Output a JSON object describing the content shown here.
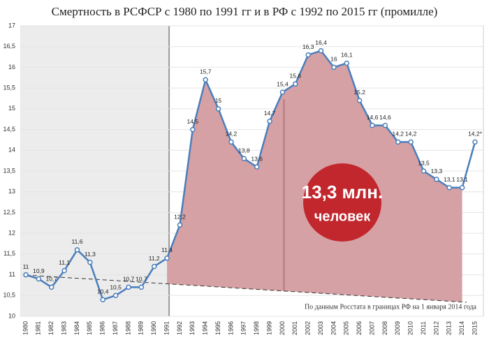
{
  "chart_data": {
    "type": "line",
    "title": "Смертность в РСФСР с 1980 по 1991 гг и в РФ с 1992 по 2015 гг (промилле)",
    "categories": [
      "1980",
      "1981",
      "1982",
      "1983",
      "1984",
      "1985",
      "1986",
      "1987",
      "1988",
      "1989",
      "1990",
      "1991",
      "1992",
      "1993",
      "1994",
      "1995",
      "1996",
      "1997",
      "1998",
      "1999",
      "2000",
      "2001",
      "2002",
      "2003",
      "2004",
      "2005",
      "2006",
      "2007",
      "2008",
      "2009",
      "2010",
      "2011",
      "2012",
      "2013",
      "2014",
      "2015"
    ],
    "series": [
      {
        "name": "Смертность",
        "color": "#4a7ebb",
        "values": [
          11,
          10.9,
          10.7,
          11.1,
          11.6,
          11.3,
          10.4,
          10.5,
          10.7,
          10.7,
          11.2,
          11.4,
          12.2,
          14.5,
          15.7,
          15,
          14.2,
          13.8,
          13.6,
          14.7,
          15.4,
          15.6,
          16.3,
          16.4,
          16,
          16.1,
          15.2,
          14.6,
          14.6,
          14.2,
          14.2,
          13.5,
          13.3,
          13.1,
          13.1,
          14.2
        ],
        "value_labels": [
          "11",
          "10,9",
          "10,7",
          "11,1",
          "11,6",
          "11,3",
          "10,4",
          "10,5",
          "10,7",
          "10,7",
          "11,2",
          "11,4",
          "12,2",
          "14,5",
          "15,7",
          "15",
          "14,2",
          "13,8",
          "13,6",
          "14,7",
          "15,4",
          "15,6",
          "16,3",
          "16,4",
          "16",
          "16,1",
          "15,2",
          "14,6",
          "14,6",
          "14,2",
          "14,2",
          "13,5",
          "13,3",
          "13,1",
          "13,1",
          "14,2*"
        ]
      }
    ],
    "ylim": [
      10,
      17
    ],
    "yticks": [
      10,
      {
        "value": 10.5,
        "label": "10,5"
      },
      11,
      {
        "value": 11.5,
        "label": "11,5"
      },
      12,
      {
        "value": 12.5,
        "label": "12,5"
      },
      13,
      {
        "value": 13.5,
        "label": "13,5"
      },
      14,
      {
        "value": 14.5,
        "label": "14,5"
      },
      15,
      {
        "value": 15.5,
        "label": "15,5"
      },
      16,
      {
        "value": 16.5,
        "label": "16,5"
      },
      17
    ],
    "grid": true,
    "callout": {
      "line1": "13,3 млн.",
      "line2": "человек"
    },
    "note": "По данным Росстата в границах РФ на 1 января 2014 года"
  }
}
